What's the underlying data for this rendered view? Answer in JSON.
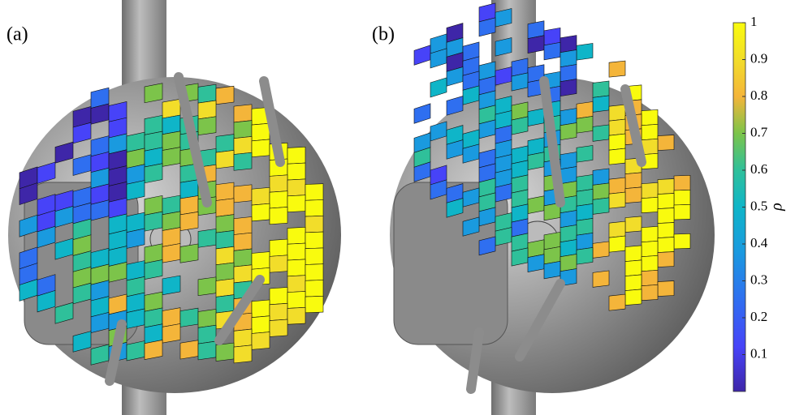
{
  "panels": [
    {
      "label": "(a)"
    },
    {
      "label": "(b)"
    }
  ],
  "colorbar": {
    "label": "ρ",
    "lim": [
      0,
      1
    ],
    "ticks": [
      0.1,
      0.2,
      0.3,
      0.4,
      0.5,
      0.6,
      0.7,
      0.8,
      0.9,
      1
    ]
  }
}
